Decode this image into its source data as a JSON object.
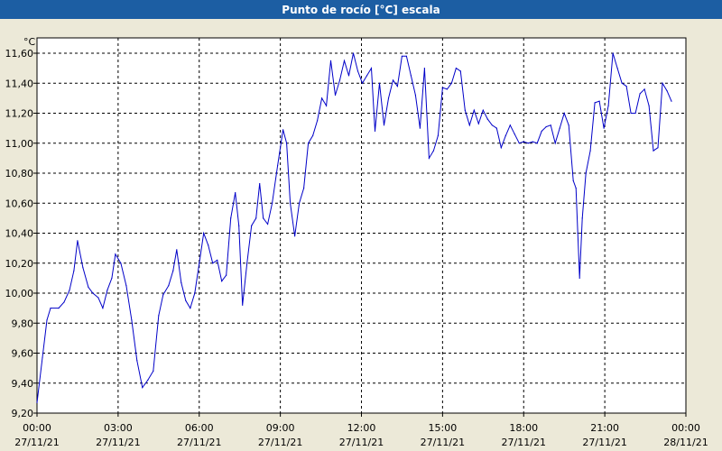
{
  "window": {
    "title": "Punto de rocío [°C] escala"
  },
  "chart_data": {
    "type": "line",
    "title": "Punto de rocío [°C] escala",
    "ylabel": "°C",
    "xlabel": "",
    "ylim": [
      9.2,
      11.7
    ],
    "xlim": [
      "27/11/21 00:00",
      "28/11/21 00:00"
    ],
    "grid": true,
    "y_ticks": [
      "9,20",
      "9,40",
      "9,60",
      "9,80",
      "10,00",
      "10,20",
      "10,40",
      "10,60",
      "10,80",
      "11,00",
      "11,20",
      "11,40",
      "11,60"
    ],
    "x_ticks": [
      {
        "time": "00:00",
        "date": "27/11/21"
      },
      {
        "time": "03:00",
        "date": "27/11/21"
      },
      {
        "time": "06:00",
        "date": "27/11/21"
      },
      {
        "time": "09:00",
        "date": "27/11/21"
      },
      {
        "time": "12:00",
        "date": "27/11/21"
      },
      {
        "time": "15:00",
        "date": "27/11/21"
      },
      {
        "time": "18:00",
        "date": "27/11/21"
      },
      {
        "time": "21:00",
        "date": "27/11/21"
      },
      {
        "time": "00:00",
        "date": "28/11/21"
      }
    ],
    "series": [
      {
        "color": "#0000c8",
        "points": [
          [
            "27/11/21 00:00",
            9.27
          ],
          [
            "27/11/21 00:12",
            9.57
          ],
          [
            "27/11/21 00:22",
            9.82
          ],
          [
            "27/11/21 00:30",
            9.9
          ],
          [
            "27/11/21 00:48",
            9.9
          ],
          [
            "27/11/21 01:00",
            9.94
          ],
          [
            "27/11/21 01:12",
            10.02
          ],
          [
            "27/11/21 01:22",
            10.15
          ],
          [
            "27/11/21 01:30",
            10.35
          ],
          [
            "27/11/21 01:42",
            10.17
          ],
          [
            "27/11/21 01:54",
            10.04
          ],
          [
            "27/11/21 02:04",
            10.0
          ],
          [
            "27/11/21 02:16",
            9.97
          ],
          [
            "27/11/21 02:26",
            9.9
          ],
          [
            "27/11/21 02:36",
            10.02
          ],
          [
            "27/11/21 02:46",
            10.1
          ],
          [
            "27/11/21 02:54",
            10.26
          ],
          [
            "27/11/21 03:06",
            10.2
          ],
          [
            "27/11/21 03:18",
            10.05
          ],
          [
            "27/11/21 03:30",
            9.82
          ],
          [
            "27/11/21 03:42",
            9.55
          ],
          [
            "27/11/21 03:54",
            9.37
          ],
          [
            "27/11/21 04:06",
            9.42
          ],
          [
            "27/11/21 04:18",
            9.48
          ],
          [
            "27/11/21 04:30",
            9.85
          ],
          [
            "27/11/21 04:40",
            9.99
          ],
          [
            "27/11/21 04:52",
            10.05
          ],
          [
            "27/11/21 05:02",
            10.15
          ],
          [
            "27/11/21 05:10",
            10.29
          ],
          [
            "27/11/21 05:20",
            10.07
          ],
          [
            "27/11/21 05:30",
            9.95
          ],
          [
            "27/11/21 05:40",
            9.9
          ],
          [
            "27/11/21 05:50",
            10.0
          ],
          [
            "27/11/21 06:00",
            10.2
          ],
          [
            "27/11/21 06:10",
            10.4
          ],
          [
            "27/11/21 06:20",
            10.32
          ],
          [
            "27/11/21 06:30",
            10.2
          ],
          [
            "27/11/21 06:40",
            10.22
          ],
          [
            "27/11/21 06:50",
            10.08
          ],
          [
            "27/11/21 07:00",
            10.12
          ],
          [
            "27/11/21 07:10",
            10.5
          ],
          [
            "27/11/21 07:20",
            10.67
          ],
          [
            "27/11/21 07:28",
            10.45
          ],
          [
            "27/11/21 07:36",
            9.92
          ],
          [
            "27/11/21 07:46",
            10.2
          ],
          [
            "27/11/21 07:56",
            10.45
          ],
          [
            "27/11/21 08:06",
            10.5
          ],
          [
            "27/11/21 08:14",
            10.73
          ],
          [
            "27/11/21 08:22",
            10.5
          ],
          [
            "27/11/21 08:32",
            10.46
          ],
          [
            "27/11/21 08:42",
            10.6
          ],
          [
            "27/11/21 08:54",
            10.85
          ],
          [
            "27/11/21 09:06",
            11.09
          ],
          [
            "27/11/21 09:14",
            11.0
          ],
          [
            "27/11/21 09:22",
            10.6
          ],
          [
            "27/11/21 09:32",
            10.38
          ],
          [
            "27/11/21 09:42",
            10.6
          ],
          [
            "27/11/21 09:52",
            10.7
          ],
          [
            "27/11/21 10:02",
            11.0
          ],
          [
            "27/11/21 10:12",
            11.05
          ],
          [
            "27/11/21 10:22",
            11.15
          ],
          [
            "27/11/21 10:32",
            11.3
          ],
          [
            "27/11/21 10:42",
            11.25
          ],
          [
            "27/11/21 10:52",
            11.55
          ],
          [
            "27/11/21 11:02",
            11.32
          ],
          [
            "27/11/21 11:12",
            11.42
          ],
          [
            "27/11/21 11:22",
            11.55
          ],
          [
            "27/11/21 11:32",
            11.45
          ],
          [
            "27/11/21 11:42",
            11.6
          ],
          [
            "27/11/21 11:52",
            11.48
          ],
          [
            "27/11/21 12:02",
            11.4
          ],
          [
            "27/11/21 12:12",
            11.45
          ],
          [
            "27/11/21 12:22",
            11.5
          ],
          [
            "27/11/21 12:30",
            11.08
          ],
          [
            "27/11/21 12:40",
            11.4
          ],
          [
            "27/11/21 12:50",
            11.12
          ],
          [
            "27/11/21 13:00",
            11.3
          ],
          [
            "27/11/21 13:10",
            11.42
          ],
          [
            "27/11/21 13:20",
            11.38
          ],
          [
            "27/11/21 13:30",
            11.58
          ],
          [
            "27/11/21 13:40",
            11.58
          ],
          [
            "27/11/21 13:50",
            11.45
          ],
          [
            "27/11/21 14:00",
            11.32
          ],
          [
            "27/11/21 14:10",
            11.1
          ],
          [
            "27/11/21 14:20",
            11.5
          ],
          [
            "27/11/21 14:30",
            10.9
          ],
          [
            "27/11/21 14:40",
            10.95
          ],
          [
            "27/11/21 14:50",
            11.05
          ],
          [
            "27/11/21 15:00",
            11.37
          ],
          [
            "27/11/21 15:10",
            11.36
          ],
          [
            "27/11/21 15:20",
            11.4
          ],
          [
            "27/11/21 15:30",
            11.5
          ],
          [
            "27/11/21 15:40",
            11.48
          ],
          [
            "27/11/21 15:50",
            11.22
          ],
          [
            "27/11/21 16:00",
            11.12
          ],
          [
            "27/11/21 16:10",
            11.22
          ],
          [
            "27/11/21 16:20",
            11.13
          ],
          [
            "27/11/21 16:30",
            11.22
          ],
          [
            "27/11/21 16:40",
            11.16
          ],
          [
            "27/11/21 16:50",
            11.12
          ],
          [
            "27/11/21 17:00",
            11.1
          ],
          [
            "27/11/21 17:10",
            10.97
          ],
          [
            "27/11/21 17:20",
            11.05
          ],
          [
            "27/11/21 17:30",
            11.12
          ],
          [
            "27/11/21 17:40",
            11.06
          ],
          [
            "27/11/21 17:50",
            11.0
          ],
          [
            "27/11/21 18:00",
            11.01
          ],
          [
            "27/11/21 18:10",
            11.0
          ],
          [
            "27/11/21 18:20",
            11.01
          ],
          [
            "27/11/21 18:30",
            11.0
          ],
          [
            "27/11/21 18:40",
            11.08
          ],
          [
            "27/11/21 18:50",
            11.11
          ],
          [
            "27/11/21 19:00",
            11.12
          ],
          [
            "27/11/21 19:10",
            11.0
          ],
          [
            "27/11/21 19:20",
            11.1
          ],
          [
            "27/11/21 19:30",
            11.2
          ],
          [
            "27/11/21 19:40",
            11.12
          ],
          [
            "27/11/21 19:50",
            10.75
          ],
          [
            "27/11/21 19:56",
            10.7
          ],
          [
            "27/11/21 20:00",
            10.4
          ],
          [
            "27/11/21 20:04",
            10.1
          ],
          [
            "27/11/21 20:10",
            10.5
          ],
          [
            "27/11/21 20:18",
            10.8
          ],
          [
            "27/11/21 20:28",
            10.95
          ],
          [
            "27/11/21 20:38",
            11.27
          ],
          [
            "27/11/21 20:48",
            11.28
          ],
          [
            "27/11/21 20:58",
            11.1
          ],
          [
            "27/11/21 21:08",
            11.25
          ],
          [
            "27/11/21 21:18",
            11.6
          ],
          [
            "27/11/21 21:28",
            11.5
          ],
          [
            "27/11/21 21:38",
            11.4
          ],
          [
            "27/11/21 21:48",
            11.38
          ],
          [
            "27/11/21 21:58",
            11.2
          ],
          [
            "27/11/21 22:08",
            11.2
          ],
          [
            "27/11/21 22:18",
            11.33
          ],
          [
            "27/11/21 22:28",
            11.36
          ],
          [
            "27/11/21 22:38",
            11.25
          ],
          [
            "27/11/21 22:48",
            10.95
          ],
          [
            "27/11/21 22:58",
            10.97
          ],
          [
            "27/11/21 23:08",
            11.4
          ],
          [
            "27/11/21 23:18",
            11.35
          ],
          [
            "27/11/21 23:28",
            11.28
          ]
        ]
      }
    ]
  }
}
